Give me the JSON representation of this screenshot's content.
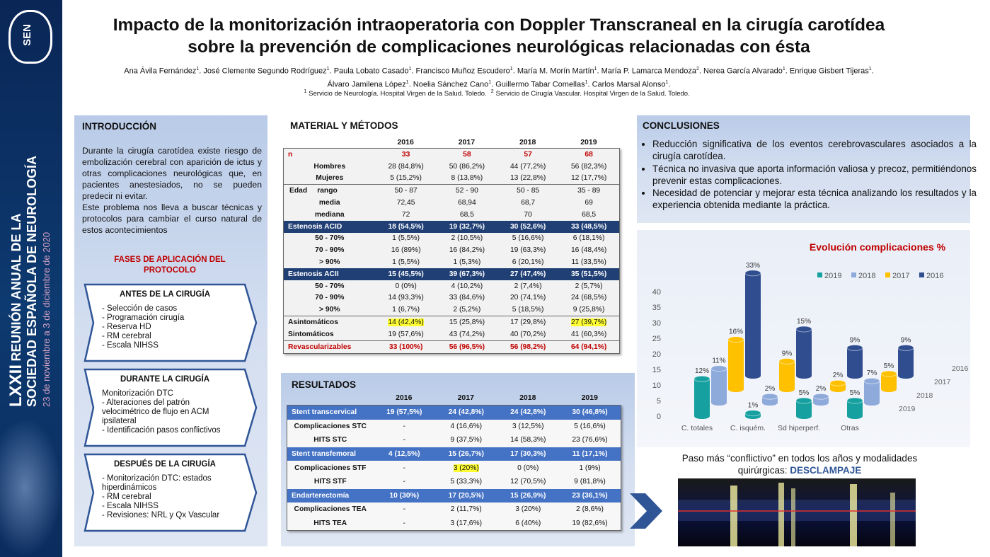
{
  "sidebar": {
    "logo": "SEN",
    "edition": "LXXII",
    "line1": "REUNIÓN ANUAL DE LA",
    "line2": "SOCIEDAD ESPAÑOLA DE NEUROLOGÍA",
    "dates": "23 de noviembre a 3 de diciembre de 2020"
  },
  "header": {
    "title_lines": [
      "Impacto de la monitorización intraoperatoria con Doppler Transcraneal en la cirugía carotídea",
      "sobre la prevención de complicaciones neurológicas relacionadas con ésta"
    ],
    "author_lines": [
      [
        "Ana Ávila Fernández",
        "1",
        ". José Clemente Segundo Rodríguez",
        "1",
        ". Paula Lobato Casado",
        "1",
        ". Francisco Muñoz Escudero",
        "1",
        ". María M. Morín Martín",
        "1",
        ". María P. Lamarca Mendoza",
        "2",
        ". Nerea García Alvarado",
        "1",
        ". Enrique Gisbert Tijeras",
        "1",
        "."
      ],
      [
        "Álvaro Jamilena López",
        "1",
        ". Noelia Sánchez Cano",
        "1",
        ". Guillermo Tabar Comellas",
        "1",
        ". Carlos Marsal Alonso",
        "1",
        "."
      ]
    ],
    "affiliations": [
      {
        "sup": "1",
        "text": "Servicio de Neurología. Hospital Virgen de la Salud. Toledo."
      },
      {
        "sup": "2",
        "text": "Servicio de Cirugía Vascular. Hospital Virgen de la Salud. Toledo."
      }
    ]
  },
  "introduction": {
    "heading": "INTRODUCCIÓN",
    "paragraphs": [
      "Durante la cirugía carotídea existe riesgo de embolización cerebral con aparición de ictus y otras complicaciones neurológicas que, en pacientes anestesiados, no se pueden predecir ni evitar.",
      "Este problema nos lleva a buscar técnicas y protocolos para cambiar el curso natural de estos acontecimientos"
    ],
    "phases_title": "FASES DE APLICACIÓN DEL PROTOCOLO",
    "phases": [
      {
        "title": "ANTES DE LA CIRUGÍA",
        "items": [
          "- Selección de casos",
          "- Programación cirugía",
          "- Reserva HD",
          "- RM cerebral",
          "- Escala NIHSS"
        ]
      },
      {
        "title": "DURANTE LA CIRUGÍA",
        "items": [
          "Monitorización DTC",
          "- Alteraciones del patrón velocimétrico de flujo en ACM ipsilateral",
          "- Identificación pasos conflictivos"
        ]
      },
      {
        "title": "DESPUÉS DE LA CIRUGÍA",
        "items": [
          "- Monitorización DTC: estados hiperdinámicos",
          "- RM cerebral",
          "- Escala NIHSS",
          "- Revisiones: NRL y Qx Vascular"
        ]
      }
    ]
  },
  "methods": {
    "heading": "MATERIAL Y MÉTODOS",
    "columns": [
      "2016",
      "2017",
      "2018",
      "2019"
    ],
    "rows": [
      {
        "label": "n",
        "cells": [
          "33",
          "58",
          "57",
          "68"
        ]
      },
      {
        "label": "Hombres",
        "cells": [
          "28 (84,8%)",
          "50 (86,2%)",
          "44 (77,2%)",
          "56 (82,3%)"
        ]
      },
      {
        "label": "Mujeres",
        "cells": [
          "5 (15,2%)",
          "8 (13,8%)",
          "13 (22,8%)",
          "12 (17,7%)"
        ]
      },
      {
        "group": "Edad",
        "label": "rango",
        "cells": [
          "50 - 87",
          "52 - 90",
          "50 - 85",
          "35 - 89"
        ]
      },
      {
        "label": "media",
        "cells": [
          "72,45",
          "68,94",
          "68,7",
          "69"
        ]
      },
      {
        "label": "mediana",
        "cells": [
          "72",
          "68,5",
          "70",
          "68,5"
        ]
      },
      {
        "label": "Estenosis ACID",
        "cells": [
          "18 (54,5%)",
          "19 (32,7%)",
          "30 (52,6%)",
          "33 (48,5%)"
        ]
      },
      {
        "label": "50 - 70%",
        "cells": [
          "1 (5,5%)",
          "2 (10,5%)",
          "5 (16,6%)",
          "6 (18,1%)"
        ]
      },
      {
        "label": "70 - 90%",
        "cells": [
          "16 (89%)",
          "16 (84,2%)",
          "19 (63,3%)",
          "16 (48,4%)"
        ]
      },
      {
        "label": "> 90%",
        "cells": [
          "1 (5,5%)",
          "1 (5,3%)",
          "6 (20,1%)",
          "11 (33,5%)"
        ]
      },
      {
        "label": "Estenosis ACII",
        "cells": [
          "15 (45,5%)",
          "39 (67,3%)",
          "27 (47,4%)",
          "35 (51,5%)"
        ]
      },
      {
        "label": "50 - 70%",
        "cells": [
          "0 (0%)",
          "4 (10,2%)",
          "2 (7,4%)",
          "2 (5,7%)"
        ]
      },
      {
        "label": "70 - 90%",
        "cells": [
          "14 (93,3%)",
          "33 (84,6%)",
          "20 (74,1%)",
          "24 (68,5%)"
        ]
      },
      {
        "label": "> 90%",
        "cells": [
          "1 (6,7%)",
          "2 (5,2%)",
          "5 (18,5%)",
          "9 (25,8%)"
        ]
      },
      {
        "label": "Asintomáticos",
        "cells": [
          "14 (42,4%)",
          "15 (25,8%)",
          "17 (29,8%)",
          "27 (39,7%)"
        ]
      },
      {
        "label": "Sintomáticos",
        "cells": [
          "19 (57,6%)",
          "43 (74,2%)",
          "40 (70,2%)",
          "41 (60,3%)"
        ]
      },
      {
        "label": "Revascularizables",
        "cells": [
          "33 (100%)",
          "56 (96,5%)",
          "56 (98,2%)",
          "64 (94,1%)"
        ]
      }
    ]
  },
  "results": {
    "heading": "RESULTADOS",
    "columns": [
      "2016",
      "2017",
      "2018",
      "2019"
    ],
    "rows": [
      {
        "label": "Stent transcervical",
        "cells": [
          "19 (57,5%)",
          "24 (42,8%)",
          "24 (42,8%)",
          "30 (46,8%)"
        ]
      },
      {
        "label": "Complicaciones STC",
        "cells": [
          "-",
          "4 (16,6%)",
          "3 (12,5%)",
          "5 (16,6%)"
        ]
      },
      {
        "label": "HITS STC",
        "cells": [
          "-",
          "9 (37,5%)",
          "14 (58,3%)",
          "23 (76,6%)"
        ]
      },
      {
        "label": "Stent transfemoral",
        "cells": [
          "4 (12,5%)",
          "15 (26,7%)",
          "17 (30,3%)",
          "11 (17,1%)"
        ]
      },
      {
        "label": "Complicaciones STF",
        "cells": [
          "-",
          "3 (20%)",
          "0 (0%)",
          "1 (9%)"
        ]
      },
      {
        "label": "HITS STF",
        "cells": [
          "-",
          "5 (33,3%)",
          "12 (70,5%)",
          "9 (81,8%)"
        ]
      },
      {
        "label": "Endarterectomía",
        "cells": [
          "10 (30%)",
          "17 (20,5%)",
          "15 (26,9%)",
          "23 (36,1%)"
        ]
      },
      {
        "label": "Complicaciones TEA",
        "cells": [
          "-",
          "2 (11,7%)",
          "3 (20%)",
          "2 (8,6%)"
        ]
      },
      {
        "label": "HITS TEA",
        "cells": [
          "-",
          "3 (17,6%)",
          "6 (40%)",
          "19 (82,6%)"
        ]
      }
    ]
  },
  "conclusions": {
    "heading": "CONCLUSIONES",
    "items": [
      "Reducción significativa de los eventos cerebrovasculares asociados a la cirugía carotídea.",
      "Técnica no invasiva que aporta información valiosa y precoz, permitiéndonos prevenir estas complicaciones.",
      "Necesidad de potenciar y mejorar esta técnica analizando los resultados y la experiencia obtenida mediante la práctica."
    ]
  },
  "chart": {
    "type": "bar3d",
    "title": "Evolución complicaciones %",
    "categories": [
      "C. totales",
      "C. isquém.",
      "Sd hiperperf.",
      "Otras"
    ],
    "series": [
      {
        "name": "2019",
        "color": "#17a0a0",
        "values": [
          12,
          1,
          5,
          5
        ],
        "value_labels": [
          "12%",
          "1%",
          "5%",
          "5%"
        ]
      },
      {
        "name": "2018",
        "color": "#8eaadb",
        "values": [
          11,
          2,
          2,
          7
        ],
        "value_labels": [
          "11%",
          "2%",
          "2%",
          "7%"
        ]
      },
      {
        "name": "2017",
        "color": "#ffc000",
        "values": [
          16,
          9,
          2,
          5
        ],
        "value_labels": [
          "16%",
          "9%",
          "2%",
          "5%"
        ]
      },
      {
        "name": "2016",
        "color": "#2f4d8f",
        "values": [
          33,
          15,
          9,
          9
        ],
        "value_labels": [
          "33%",
          "15%",
          "9%",
          "9%"
        ]
      }
    ],
    "ylim": [
      0,
      40
    ],
    "yticks": [
      0,
      5,
      10,
      15,
      20,
      25,
      30,
      35,
      40
    ],
    "legend": "top"
  },
  "footnote": {
    "text": "Paso más “conflictivo” en todos los años y modalidades quirúrgicas: ",
    "emphasis": "DESCLAMPAJE"
  }
}
